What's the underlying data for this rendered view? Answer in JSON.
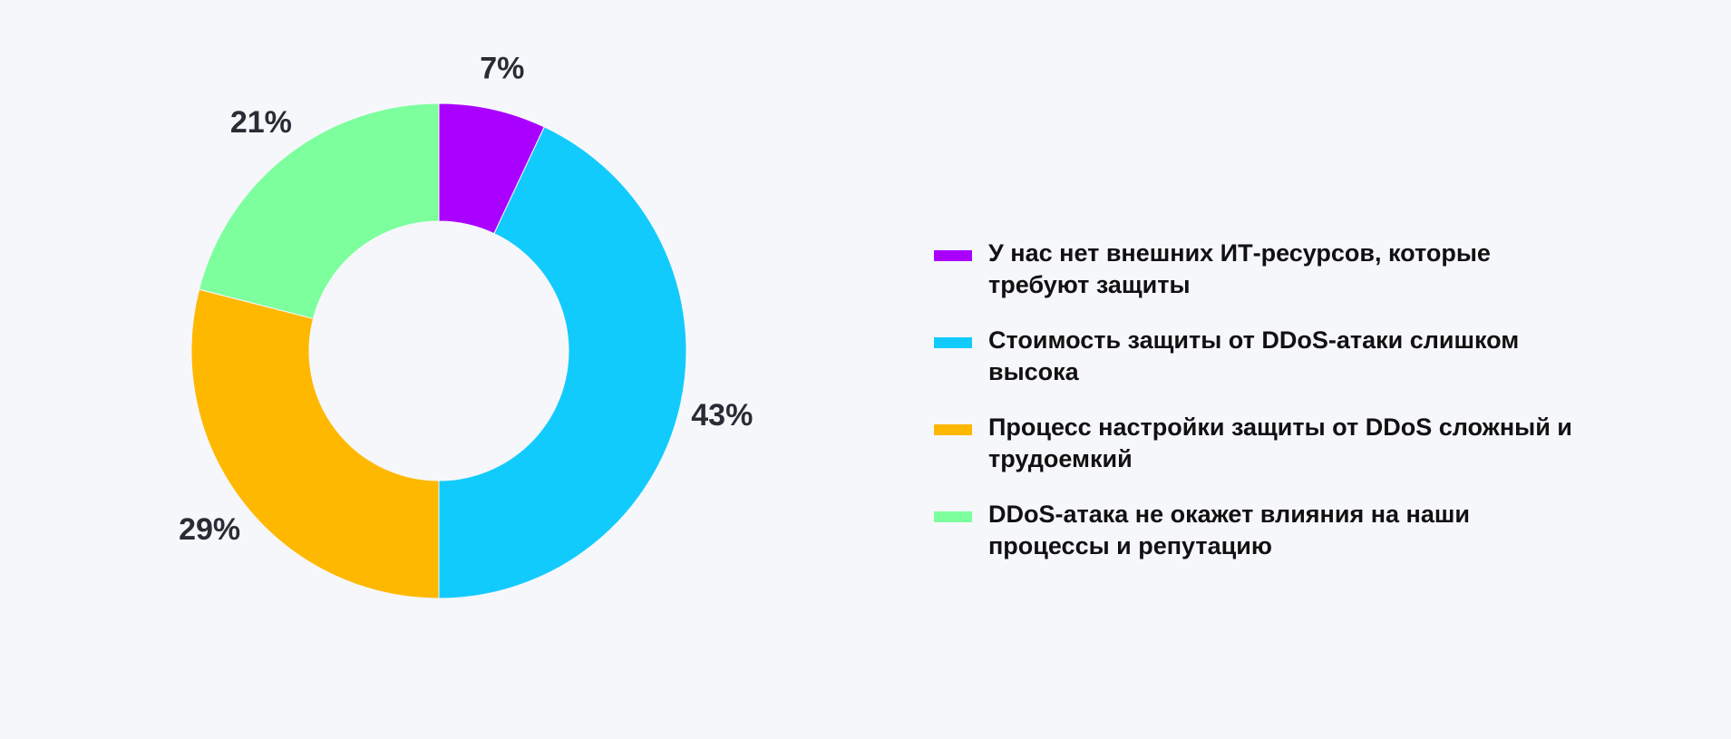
{
  "chart_data": {
    "type": "pie",
    "donut": true,
    "start": "top",
    "direction": "clockwise",
    "categories": [
      "У нас нет внешних ИТ-ресурсов, которые требуют защиты",
      "Стоимость защиты от DDoS-атаки слишком высока",
      "Процесс настройки защиты от DDoS сложный и трудоемкий",
      "DDoS-атака не окажет влияния на наши процессы и репутацию"
    ],
    "values": [
      7,
      43,
      29,
      21
    ],
    "value_labels": [
      "7%",
      "43%",
      "29%",
      "21%"
    ],
    "colors": [
      "#aa00ff",
      "#12cbfd",
      "#ffb800",
      "#7dff9e"
    ],
    "legend_position": "right"
  },
  "legend": {
    "items": [
      {
        "label": "У нас нет внешних ИТ-ресурсов, которые требуют защиты",
        "color": "#aa00ff"
      },
      {
        "label": "Стоимость защиты от DDoS-атаки слишком высока",
        "color": "#12cbfd"
      },
      {
        "label": "Процесс настройки защиты от DDoS сложный и трудоемкий",
        "color": "#ffb800"
      },
      {
        "label": "DDoS-атака не окажет влияния на наши процессы и репутацию",
        "color": "#7dff9e"
      }
    ]
  },
  "colors": {
    "background": "#f6f7fb",
    "label_text": "#2b2b36",
    "legend_text": "#111111"
  }
}
